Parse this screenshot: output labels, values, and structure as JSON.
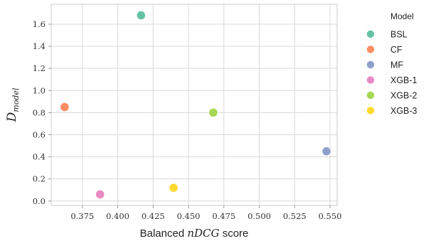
{
  "chart_data": {
    "type": "scatter",
    "xlabel_prefix": "Balanced",
    "xlabel_math": "nDCG",
    "xlabel_suffix": "score",
    "ylabel_main": "D",
    "ylabel_sub": "model",
    "xlim": [
      0.353,
      0.555
    ],
    "ylim": [
      -0.04,
      1.78
    ],
    "xticks": [
      {
        "value": 0.375,
        "label": "0.375"
      },
      {
        "value": 0.4,
        "label": "0.400"
      },
      {
        "value": 0.425,
        "label": "0.425"
      },
      {
        "value": 0.45,
        "label": "0.450"
      },
      {
        "value": 0.475,
        "label": "0.475"
      },
      {
        "value": 0.5,
        "label": "0.500"
      },
      {
        "value": 0.525,
        "label": "0.525"
      },
      {
        "value": 0.55,
        "label": "0.550"
      }
    ],
    "yticks": [
      {
        "value": 0.0,
        "label": "0.0"
      },
      {
        "value": 0.2,
        "label": "0.2"
      },
      {
        "value": 0.4,
        "label": "0.4"
      },
      {
        "value": 0.6,
        "label": "0.6"
      },
      {
        "value": 0.8,
        "label": "0.8"
      },
      {
        "value": 1.0,
        "label": "1.0"
      },
      {
        "value": 1.2,
        "label": "1.2"
      },
      {
        "value": 1.4,
        "label": "1.4"
      },
      {
        "value": 1.6,
        "label": "1.6"
      }
    ],
    "grid": true,
    "legend_title": "Model",
    "legend_position": "outside-right",
    "series": [
      {
        "name": "BSL",
        "color": "#66c2a5",
        "x": 0.4165,
        "y": 1.68
      },
      {
        "name": "CF",
        "color": "#fc8d62",
        "x": 0.3625,
        "y": 0.85
      },
      {
        "name": "MF",
        "color": "#8da0cb",
        "x": 0.5475,
        "y": 0.45
      },
      {
        "name": "XGB-1",
        "color": "#e78ac3",
        "x": 0.3875,
        "y": 0.06
      },
      {
        "name": "XGB-2",
        "color": "#a6d854",
        "x": 0.4675,
        "y": 0.8
      },
      {
        "name": "XGB-3",
        "color": "#ffd92f",
        "x": 0.4395,
        "y": 0.12
      }
    ]
  }
}
